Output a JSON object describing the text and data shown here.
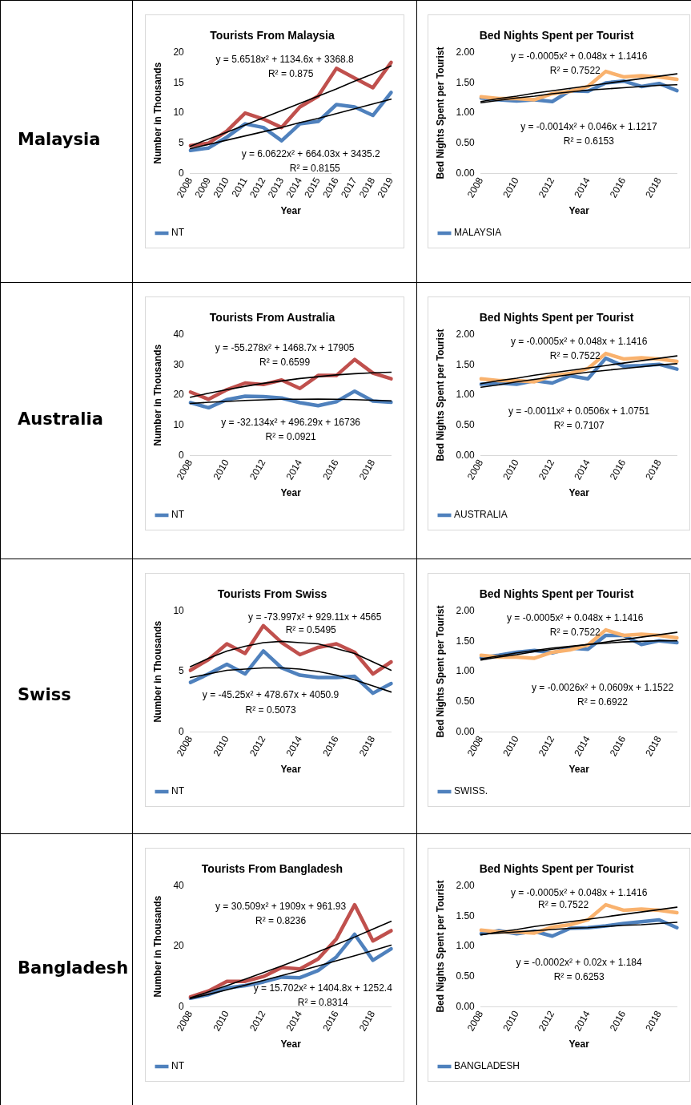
{
  "chart_data": [
    {
      "type": "line",
      "title": "Tourists From Malaysia",
      "xlabel": "Year",
      "ylabel": "Number in Thousands",
      "categories": [
        "2008",
        "2009",
        "2010",
        "2011",
        "2012",
        "2013",
        "2014",
        "2015",
        "2016",
        "2017",
        "2018",
        "2019"
      ],
      "ylim": [
        0,
        20
      ],
      "yticks": [
        0,
        5,
        10,
        15,
        20
      ],
      "legend": "bottom",
      "marker": "none",
      "series": [
        {
          "name": "NT",
          "color": "#4f81bd",
          "values": [
            3.8,
            4.2,
            6.0,
            8.2,
            7.6,
            5.4,
            8.2,
            8.6,
            11.4,
            11.0,
            9.6,
            13.4
          ]
        },
        {
          "color": "#c0504d",
          "values": [
            4.6,
            5.0,
            7.0,
            10.0,
            9.0,
            7.6,
            11.0,
            12.8,
            17.4,
            15.8,
            14.2,
            18.4
          ]
        },
        {
          "type": "line",
          "color": "#000000",
          "values": [
            4.5,
            5.7,
            6.8,
            8.0,
            9.2,
            10.4,
            11.6,
            12.8,
            14.0,
            15.3,
            16.5,
            17.8
          ]
        },
        {
          "type": "line",
          "color": "#000000",
          "values": [
            4.1,
            4.8,
            5.5,
            6.2,
            6.9,
            7.6,
            8.4,
            9.1,
            9.9,
            10.7,
            11.5,
            12.3
          ]
        }
      ],
      "annotations": [
        "Malaysia",
        "y = 5.6518x² + 1134.6x + 3368.8",
        "R² = 0.875",
        "y = 6.0622x² + 664.03x + 3435.2",
        "R² = 0.8155"
      ]
    },
    {
      "type": "line",
      "title": "Bed Nights Spent per Tourist",
      "xlabel": "Year",
      "ylabel": "Bed Nights Spent per Tourist",
      "categories": [
        "2008",
        null,
        "2010",
        null,
        "2012",
        null,
        "2014",
        null,
        "2016",
        null,
        "2018",
        null
      ],
      "ylim": [
        0,
        2
      ],
      "yticks": [
        {
          "value": 0,
          "label": "0.00"
        },
        {
          "value": 0.5,
          "label": "0.50"
        },
        {
          "value": 1,
          "label": "1.00"
        },
        {
          "value": 1.5,
          "label": "1.50"
        },
        {
          "value": 2,
          "label": "2.00"
        }
      ],
      "legend": "bottom",
      "marker": "none",
      "series": [
        {
          "name": "MALAYSIA",
          "color": "#4f81bd",
          "values": [
            1.25,
            1.22,
            1.2,
            1.22,
            1.19,
            1.37,
            1.36,
            1.5,
            1.53,
            1.44,
            1.49,
            1.37
          ]
        },
        {
          "color": "#f9b26e",
          "values": [
            1.27,
            1.24,
            1.24,
            1.22,
            1.32,
            1.36,
            1.44,
            1.69,
            1.6,
            1.62,
            1.6,
            1.56
          ]
        },
        {
          "type": "line",
          "color": "#000000",
          "values": [
            1.19,
            1.24,
            1.28,
            1.33,
            1.37,
            1.41,
            1.45,
            1.49,
            1.53,
            1.57,
            1.61,
            1.65
          ]
        },
        {
          "type": "line",
          "color": "#000000",
          "values": [
            1.17,
            1.21,
            1.25,
            1.28,
            1.32,
            1.35,
            1.38,
            1.4,
            1.42,
            1.44,
            1.46,
            1.47
          ]
        }
      ],
      "annotations": [
        "y = -0.0005x² + 0.048x + 1.1416",
        "R² = 0.7522",
        "y = -0.0014x² + 0.046x + 1.1217",
        "R² = 0.6153"
      ]
    },
    {
      "type": "line",
      "title": "Tourists From Australia",
      "xlabel": "Year",
      "ylabel": "Number in Thousands",
      "categories": [
        "2008",
        null,
        "2010",
        null,
        "2012",
        null,
        "2014",
        null,
        "2016",
        null,
        "2018",
        null
      ],
      "ylim": [
        0,
        40
      ],
      "yticks": [
        0,
        10,
        20,
        30,
        40
      ],
      "legend": "bottom",
      "marker": "none",
      "series": [
        {
          "name": "NT",
          "color": "#4f81bd",
          "values": [
            17.5,
            15.8,
            18.5,
            19.6,
            19.5,
            19.0,
            17.5,
            16.5,
            17.8,
            21.3,
            18.0,
            17.6
          ]
        },
        {
          "color": "#c0504d",
          "values": [
            21.0,
            18.6,
            21.8,
            24.0,
            23.5,
            25.0,
            22.2,
            26.5,
            26.5,
            31.8,
            27.3,
            25.4
          ]
        },
        {
          "type": "line",
          "color": "#000000",
          "values": [
            19.3,
            20.6,
            21.8,
            22.9,
            23.9,
            24.7,
            25.5,
            26.1,
            26.7,
            27.1,
            27.4,
            27.6
          ]
        },
        {
          "type": "line",
          "color": "#000000",
          "values": [
            17.2,
            17.6,
            17.9,
            18.2,
            18.4,
            18.6,
            18.6,
            18.7,
            18.6,
            18.5,
            18.3,
            18.1
          ]
        }
      ],
      "annotations": [
        "Australia",
        "y = -55.278x² + 1468.7x + 17905",
        "R² = 0.6599",
        "y = -32.134x² + 496.29x + 16736",
        "R² = 0.0921"
      ]
    },
    {
      "type": "line",
      "title": "Bed Nights Spent per Tourist",
      "xlabel": "Year",
      "ylabel": "Bed Nights Spent per Tourist",
      "categories": [
        "2008",
        null,
        "2010",
        null,
        "2012",
        null,
        "2014",
        null,
        "2016",
        null,
        "2018",
        null
      ],
      "ylim": [
        0,
        2
      ],
      "yticks": [
        {
          "value": 0,
          "label": "0.00"
        },
        {
          "value": 0.5,
          "label": "0.50"
        },
        {
          "value": 1,
          "label": "1.00"
        },
        {
          "value": 1.5,
          "label": "1.50"
        },
        {
          "value": 2,
          "label": "2.00"
        }
      ],
      "legend": "bottom",
      "marker": "none",
      "series": [
        {
          "name": "AUSTRALIA",
          "color": "#4f81bd",
          "values": [
            1.18,
            1.2,
            1.18,
            1.24,
            1.2,
            1.32,
            1.27,
            1.61,
            1.48,
            1.49,
            1.51,
            1.43
          ]
        },
        {
          "color": "#f9b26e",
          "values": [
            1.27,
            1.24,
            1.24,
            1.22,
            1.32,
            1.36,
            1.44,
            1.69,
            1.6,
            1.62,
            1.6,
            1.56
          ]
        },
        {
          "type": "line",
          "color": "#000000",
          "values": [
            1.19,
            1.24,
            1.28,
            1.33,
            1.37,
            1.41,
            1.45,
            1.49,
            1.53,
            1.57,
            1.61,
            1.65
          ]
        },
        {
          "type": "line",
          "color": "#000000",
          "values": [
            1.13,
            1.17,
            1.22,
            1.26,
            1.3,
            1.34,
            1.38,
            1.41,
            1.44,
            1.47,
            1.5,
            1.52
          ]
        }
      ],
      "annotations": [
        "y = -0.0005x² + 0.048x + 1.1416",
        "R² = 0.7522",
        "y = -0.0011x² + 0.0506x + 1.0751",
        "R² = 0.7107"
      ]
    },
    {
      "type": "line",
      "title": "Tourists From Swiss",
      "xlabel": "Year",
      "ylabel": "Number in Thousands",
      "categories": [
        "2008",
        null,
        "2010",
        null,
        "2012",
        null,
        "2014",
        null,
        "2016",
        null,
        "2018",
        null
      ],
      "ylim": [
        0,
        10
      ],
      "yticks": [
        0,
        5,
        10
      ],
      "legend": "bottom",
      "marker": "none",
      "series": [
        {
          "name": "NT",
          "color": "#4f81bd",
          "values": [
            4.1,
            4.8,
            5.6,
            4.8,
            6.7,
            5.3,
            4.7,
            4.5,
            4.5,
            4.6,
            3.2,
            4.0
          ]
        },
        {
          "color": "#c0504d",
          "values": [
            5.1,
            6.0,
            7.3,
            6.5,
            8.8,
            7.4,
            6.4,
            7.0,
            7.3,
            6.6,
            4.8,
            5.8
          ]
        },
        {
          "type": "line",
          "color": "#000000",
          "values": [
            5.4,
            6.1,
            6.7,
            7.1,
            7.4,
            7.5,
            7.4,
            7.3,
            6.9,
            6.5,
            5.8,
            5.1
          ]
        },
        {
          "type": "line",
          "color": "#000000",
          "values": [
            4.5,
            4.8,
            5.1,
            5.2,
            5.3,
            5.3,
            5.2,
            5.0,
            4.7,
            4.3,
            3.8,
            3.3
          ]
        }
      ],
      "annotations": [
        "Swiss",
        "y = -73.997x² + 929.11x + 4565",
        "R² = 0.5495",
        "y = -45.25x² + 478.67x + 4050.9",
        "R² = 0.5073"
      ]
    },
    {
      "type": "line",
      "title": "Bed Nights Spent per Tourist",
      "xlabel": "Year",
      "ylabel": "Bed Nights Spent per Tourist",
      "categories": [
        "2008",
        null,
        "2010",
        null,
        "2012",
        null,
        "2014",
        null,
        "2016",
        null,
        "2018",
        null
      ],
      "ylim": [
        0,
        2
      ],
      "yticks": [
        {
          "value": 0,
          "label": "0.00"
        },
        {
          "value": 0.5,
          "label": "0.50"
        },
        {
          "value": 1,
          "label": "1.00"
        },
        {
          "value": 1.5,
          "label": "1.50"
        },
        {
          "value": 2,
          "label": "2.00"
        }
      ],
      "legend": "bottom",
      "marker": "none",
      "series": [
        {
          "name": "SWISS.",
          "color": "#4f81bd",
          "values": [
            1.23,
            1.27,
            1.32,
            1.35,
            1.31,
            1.39,
            1.37,
            1.6,
            1.6,
            1.45,
            1.51,
            1.48
          ]
        },
        {
          "color": "#f9b26e",
          "values": [
            1.27,
            1.24,
            1.24,
            1.22,
            1.32,
            1.36,
            1.44,
            1.69,
            1.6,
            1.62,
            1.6,
            1.56
          ]
        },
        {
          "type": "line",
          "color": "#000000",
          "values": [
            1.19,
            1.24,
            1.28,
            1.33,
            1.37,
            1.41,
            1.45,
            1.49,
            1.53,
            1.57,
            1.61,
            1.65
          ]
        },
        {
          "type": "line",
          "color": "#000000",
          "values": [
            1.21,
            1.26,
            1.31,
            1.35,
            1.39,
            1.42,
            1.45,
            1.47,
            1.49,
            1.5,
            1.51,
            1.51
          ]
        }
      ],
      "annotations": [
        "y = -0.0005x² + 0.048x + 1.1416",
        "R² = 0.7522",
        "y = -0.0026x² + 0.0609x + 1.1522",
        "R² = 0.6922"
      ]
    },
    {
      "type": "line",
      "title": "Tourists From Bangladesh",
      "xlabel": "Year",
      "ylabel": "Number in Thousands",
      "categories": [
        "2008",
        null,
        "2010",
        null,
        "2012",
        null,
        "2014",
        null,
        "2016",
        null,
        "2018",
        null
      ],
      "ylim": [
        0,
        40
      ],
      "yticks": [
        0,
        20,
        40
      ],
      "legend": "bottom",
      "marker": "none",
      "series": [
        {
          "name": "NT",
          "color": "#4f81bd",
          "values": [
            2.8,
            4.0,
            6.2,
            7.0,
            8.2,
            9.8,
            9.6,
            12.0,
            16.5,
            24.0,
            15.4,
            19.2
          ]
        },
        {
          "color": "#c0504d",
          "values": [
            3.2,
            5.2,
            8.4,
            8.4,
            10.0,
            13.0,
            12.5,
            15.8,
            22.5,
            33.8,
            21.8,
            25.2
          ]
        },
        {
          "type": "line",
          "color": "#000000",
          "values": [
            2.9,
            4.9,
            7.0,
            9.1,
            11.3,
            13.5,
            15.8,
            18.2,
            20.6,
            23.1,
            25.7,
            28.3
          ]
        },
        {
          "type": "line",
          "color": "#000000",
          "values": [
            2.7,
            4.1,
            5.6,
            7.1,
            8.7,
            10.3,
            11.9,
            13.5,
            15.2,
            16.9,
            18.6,
            20.4
          ]
        }
      ],
      "annotations": [
        "Bangladesh",
        "y = 30.509x² + 1909x + 961.93",
        "R² = 0.8236",
        "y = 15.702x² + 1404.8x + 1252.4",
        "R² = 0.8314"
      ]
    },
    {
      "type": "line",
      "title": "Bed Nights Spent per Tourist",
      "xlabel": "Year",
      "ylabel": "Bed Nights Spent per Tourist",
      "categories": [
        "2008",
        null,
        "2010",
        null,
        "2012",
        null,
        "2014",
        null,
        "2016",
        null,
        "2018",
        null
      ],
      "ylim": [
        0,
        2
      ],
      "yticks": [
        {
          "value": 0,
          "label": "0.00"
        },
        {
          "value": 0.5,
          "label": "0.50"
        },
        {
          "value": 1,
          "label": "1.00"
        },
        {
          "value": 1.5,
          "label": "1.50"
        },
        {
          "value": 2,
          "label": "2.00"
        }
      ],
      "legend": "bottom",
      "marker": "none",
      "series": [
        {
          "name": "BANGLADESH",
          "color": "#4f81bd",
          "values": [
            1.21,
            1.26,
            1.21,
            1.25,
            1.17,
            1.3,
            1.31,
            1.34,
            1.38,
            1.41,
            1.44,
            1.31
          ]
        },
        {
          "color": "#f9b26e",
          "values": [
            1.27,
            1.24,
            1.24,
            1.22,
            1.32,
            1.36,
            1.44,
            1.69,
            1.6,
            1.62,
            1.6,
            1.56
          ]
        },
        {
          "type": "line",
          "color": "#000000",
          "values": [
            1.19,
            1.24,
            1.28,
            1.33,
            1.37,
            1.41,
            1.45,
            1.49,
            1.53,
            1.57,
            1.61,
            1.65
          ]
        },
        {
          "type": "line",
          "color": "#000000",
          "values": [
            1.2,
            1.22,
            1.24,
            1.26,
            1.28,
            1.3,
            1.31,
            1.33,
            1.35,
            1.36,
            1.38,
            1.4
          ]
        }
      ],
      "annotations": [
        "y = -0.0005x² + 0.048x + 1.1416",
        "R² = 0.7522",
        "y = -0.0002x² + 0.02x + 1.184",
        "R² = 0.6253"
      ]
    }
  ]
}
